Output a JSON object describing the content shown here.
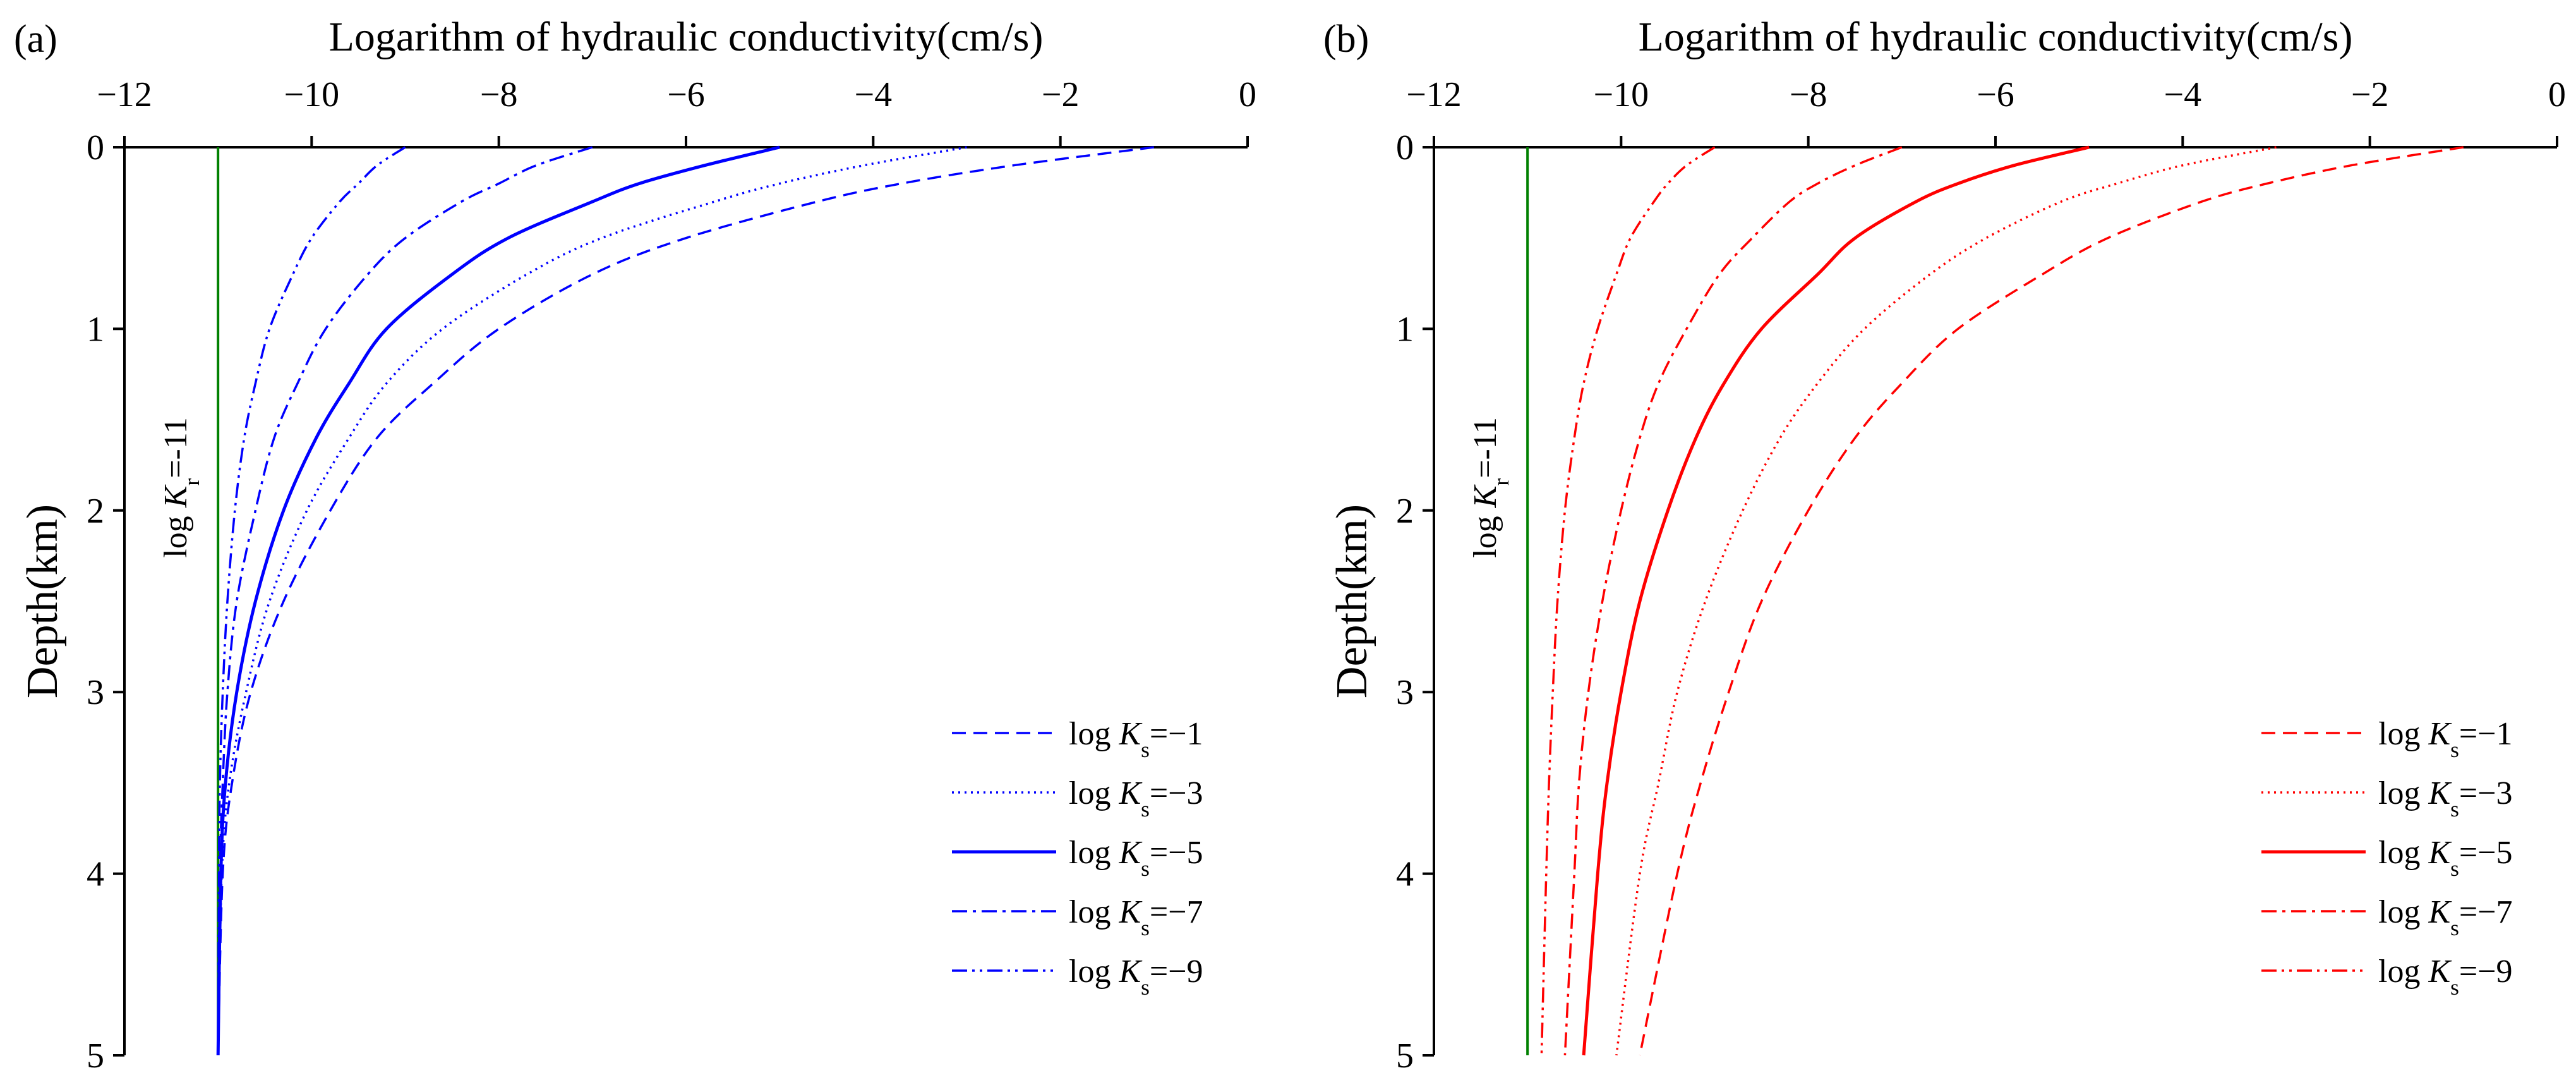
{
  "chart_data": [
    {
      "panel_label": "(a)",
      "type": "line",
      "title": "Logarithm of hydraulic conductivity(cm/s)",
      "xlabel": "Logarithm of hydraulic conductivity(cm/s)",
      "ylabel": "Depth(km)",
      "xlim": [
        -12,
        0
      ],
      "ylim": [
        0,
        5
      ],
      "x_ticks": [
        -12,
        -10,
        -8,
        -6,
        -4,
        -2,
        0
      ],
      "y_ticks": [
        0,
        1,
        2,
        3,
        4,
        5
      ],
      "x_tick_labels": [
        "−12",
        "−10",
        "−8",
        "−6",
        "−4",
        "−2",
        "0"
      ],
      "y_tick_labels": [
        "0",
        "1",
        "2",
        "3",
        "4",
        "5"
      ],
      "series_color": "#0000ff",
      "reference_line": {
        "prefix": "log ",
        "var": "K",
        "sub": "r",
        "suffix": "=-11",
        "x": -11,
        "color": "#008000"
      },
      "series": [
        {
          "ks": -1,
          "prefix": "log ",
          "var": "K",
          "sub": "s",
          "suffix": "=−1",
          "dash": "dashed",
          "depth": [
            0,
            0.1,
            0.2,
            0.3,
            0.5,
            0.7,
            1.0,
            1.3,
            1.6,
            2.0,
            2.5,
            3.0,
            3.5,
            4.0,
            5.0
          ],
          "log_k": [
            -1.0,
            -2.5,
            -3.7,
            -4.6,
            -6.0,
            -7.0,
            -8.0,
            -8.7,
            -9.3,
            -9.8,
            -10.3,
            -10.65,
            -10.85,
            -10.95,
            -11.0
          ]
        },
        {
          "ks": -3,
          "prefix": "log ",
          "var": "K",
          "sub": "s",
          "suffix": "=−3",
          "dash": "dotted",
          "depth": [
            0,
            0.1,
            0.2,
            0.3,
            0.5,
            0.7,
            1.0,
            1.3,
            1.6,
            2.0,
            2.5,
            3.0,
            3.5,
            4.0,
            5.0
          ],
          "log_k": [
            -3.0,
            -4.1,
            -5.0,
            -5.7,
            -6.9,
            -7.7,
            -8.6,
            -9.2,
            -9.6,
            -10.05,
            -10.45,
            -10.7,
            -10.88,
            -10.96,
            -11.0
          ]
        },
        {
          "ks": -5,
          "prefix": "log ",
          "var": "K",
          "sub": "s",
          "suffix": "=−5",
          "dash": "solid",
          "depth": [
            0,
            0.1,
            0.2,
            0.3,
            0.5,
            0.7,
            1.0,
            1.3,
            1.6,
            2.0,
            2.5,
            3.0,
            3.5,
            4.0,
            5.0
          ],
          "log_k": [
            -5.0,
            -5.8,
            -6.5,
            -7.0,
            -7.9,
            -8.5,
            -9.2,
            -9.6,
            -9.95,
            -10.3,
            -10.6,
            -10.8,
            -10.92,
            -10.97,
            -11.0
          ]
        },
        {
          "ks": -7,
          "prefix": "log ",
          "var": "K",
          "sub": "s",
          "suffix": "=−7",
          "dash": "dashdot",
          "depth": [
            0,
            0.1,
            0.2,
            0.3,
            0.5,
            0.7,
            1.0,
            1.3,
            1.6,
            2.0,
            2.5,
            3.0,
            3.5,
            4.0,
            5.0
          ],
          "log_k": [
            -7.0,
            -7.6,
            -8.0,
            -8.4,
            -9.0,
            -9.4,
            -9.85,
            -10.15,
            -10.4,
            -10.6,
            -10.8,
            -10.9,
            -10.95,
            -10.98,
            -11.0
          ]
        },
        {
          "ks": -9,
          "prefix": "log ",
          "var": "K",
          "sub": "s",
          "suffix": "=−9",
          "dash": "dashdotdot",
          "depth": [
            0,
            0.1,
            0.2,
            0.3,
            0.5,
            0.7,
            1.0,
            1.3,
            1.6,
            2.0,
            2.5,
            3.0,
            3.5,
            4.0,
            5.0
          ],
          "log_k": [
            -9.0,
            -9.3,
            -9.5,
            -9.7,
            -10.0,
            -10.2,
            -10.45,
            -10.6,
            -10.72,
            -10.82,
            -10.9,
            -10.95,
            -10.98,
            -10.99,
            -11.0
          ]
        }
      ]
    },
    {
      "panel_label": "(b)",
      "type": "line",
      "title": "Logarithm of hydraulic conductivity(cm/s)",
      "xlabel": "Logarithm of hydraulic conductivity(cm/s)",
      "ylabel": "Depth(km)",
      "xlim": [
        -12,
        0
      ],
      "ylim": [
        0,
        5
      ],
      "x_ticks": [
        -12,
        -10,
        -8,
        -6,
        -4,
        -2,
        0
      ],
      "y_ticks": [
        0,
        1,
        2,
        3,
        4,
        5
      ],
      "x_tick_labels": [
        "−12",
        "−10",
        "−8",
        "−6",
        "−4",
        "−2",
        "0"
      ],
      "y_tick_labels": [
        "0",
        "1",
        "2",
        "3",
        "4",
        "5"
      ],
      "series_color": "#ff0000",
      "reference_line": {
        "prefix": "log ",
        "var": "K",
        "sub": "r",
        "suffix": "=-11",
        "x": -11,
        "color": "#008000"
      },
      "series": [
        {
          "ks": -1,
          "prefix": "log ",
          "var": "K",
          "sub": "s",
          "suffix": "=−1",
          "dash": "dashed",
          "depth": [
            0,
            0.1,
            0.2,
            0.3,
            0.5,
            0.7,
            1.0,
            1.3,
            1.6,
            2.0,
            2.5,
            3.0,
            3.5,
            4.0,
            5.0
          ],
          "log_k": [
            -1.0,
            -2.2,
            -3.1,
            -3.8,
            -4.8,
            -5.5,
            -6.4,
            -7.0,
            -7.5,
            -8.0,
            -8.5,
            -8.85,
            -9.15,
            -9.4,
            -9.8
          ]
        },
        {
          "ks": -3,
          "prefix": "log ",
          "var": "K",
          "sub": "s",
          "suffix": "=−3",
          "dash": "dotted",
          "depth": [
            0,
            0.1,
            0.2,
            0.3,
            0.5,
            0.7,
            1.0,
            1.3,
            1.6,
            2.0,
            2.5,
            3.0,
            3.5,
            4.0,
            5.0
          ],
          "log_k": [
            -3.0,
            -4.0,
            -4.7,
            -5.3,
            -6.1,
            -6.7,
            -7.4,
            -7.9,
            -8.3,
            -8.7,
            -9.1,
            -9.4,
            -9.6,
            -9.8,
            -10.05
          ]
        },
        {
          "ks": -5,
          "prefix": "log ",
          "var": "K",
          "sub": "s",
          "suffix": "=−5",
          "dash": "solid",
          "depth": [
            0,
            0.1,
            0.2,
            0.3,
            0.5,
            0.7,
            1.0,
            1.3,
            1.6,
            2.0,
            2.5,
            3.0,
            3.5,
            4.0,
            5.0
          ],
          "log_k": [
            -5.0,
            -5.8,
            -6.4,
            -6.85,
            -7.5,
            -7.9,
            -8.5,
            -8.9,
            -9.2,
            -9.5,
            -9.8,
            -10.0,
            -10.15,
            -10.25,
            -10.4
          ]
        },
        {
          "ks": -7,
          "prefix": "log ",
          "var": "K",
          "sub": "s",
          "suffix": "=−7",
          "dash": "dashdot",
          "depth": [
            0,
            0.1,
            0.2,
            0.3,
            0.5,
            0.7,
            1.0,
            1.3,
            1.6,
            2.0,
            2.5,
            3.0,
            3.5,
            4.0,
            5.0
          ],
          "log_k": [
            -7.0,
            -7.5,
            -7.9,
            -8.2,
            -8.6,
            -8.95,
            -9.3,
            -9.6,
            -9.8,
            -10.0,
            -10.2,
            -10.35,
            -10.45,
            -10.5,
            -10.6
          ]
        },
        {
          "ks": -9,
          "prefix": "log ",
          "var": "K",
          "sub": "s",
          "suffix": "=−9",
          "dash": "dashdotdot",
          "depth": [
            0,
            0.1,
            0.2,
            0.3,
            0.5,
            0.7,
            1.0,
            1.3,
            1.6,
            2.0,
            2.5,
            3.0,
            3.5,
            4.0,
            5.0
          ],
          "log_k": [
            -9.0,
            -9.3,
            -9.5,
            -9.65,
            -9.9,
            -10.05,
            -10.25,
            -10.4,
            -10.5,
            -10.6,
            -10.68,
            -10.73,
            -10.77,
            -10.8,
            -10.85
          ]
        }
      ]
    }
  ]
}
